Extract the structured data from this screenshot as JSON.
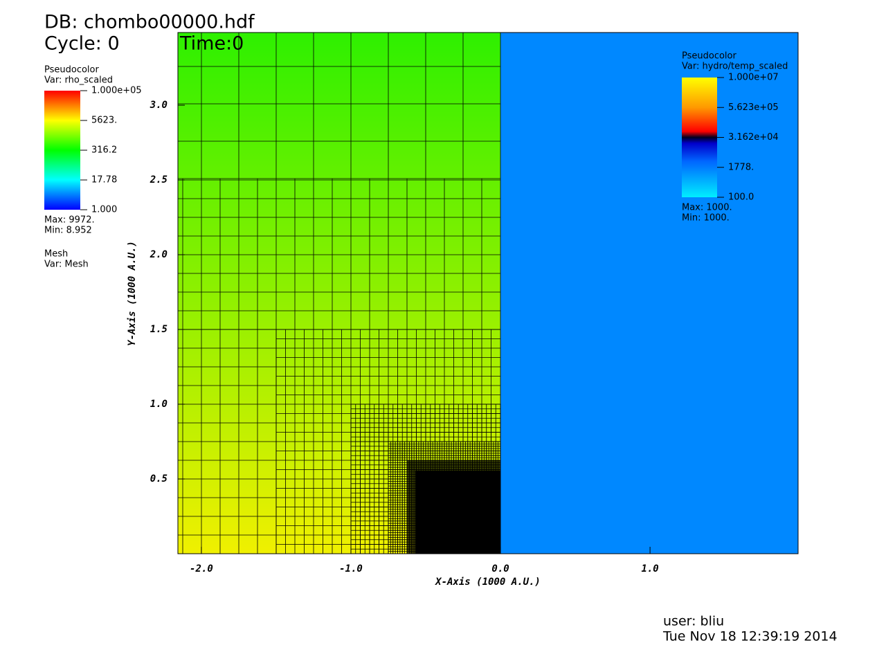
{
  "header": {
    "database": "DB: chombo00000.hdf",
    "cycle": "Cycle: 0",
    "time": "Time:0"
  },
  "chart_data": {
    "type": "pseudocolor",
    "x_label": "X-Axis (1000 A.U.)",
    "y_label": "Y-Axis (1000 A.U.)",
    "xlim": [
      -2.157,
      1.99
    ],
    "ylim": [
      0,
      3.486
    ],
    "xticks": [
      {
        "value": -2,
        "label": "-2.0"
      },
      {
        "value": -1,
        "label": "-1.0"
      },
      {
        "value": 0,
        "label": "0.0"
      },
      {
        "value": 1,
        "label": "1.0"
      }
    ],
    "yticks": [
      0.5,
      {
        "value": 1,
        "label": "1.0"
      },
      1.5,
      {
        "value": 2,
        "label": "2.0"
      },
      2.5,
      {
        "value": 3,
        "label": "3.0"
      }
    ],
    "legends": [
      {
        "title": "Pseudocolor",
        "var": "Var: rho_scaled",
        "log": true,
        "ticks": [
          {
            "value": 100000,
            "label": "1.000e+05"
          },
          {
            "value": 5623,
            "label": "5623."
          },
          {
            "value": 316.2,
            "label": "316.2"
          },
          {
            "value": 17.78,
            "label": "17.78"
          },
          {
            "value": 1,
            "label": "1.000"
          }
        ],
        "max": "Max:  9972.",
        "min": "Min:  8.952"
      },
      {
        "title": "Pseudocolor",
        "var": "Var: hydro/temp_scaled",
        "log": true,
        "ticks": [
          {
            "value": 10000000,
            "label": "1.000e+07"
          },
          {
            "value": 562300,
            "label": "5.623e+05"
          },
          {
            "value": 31620,
            "label": "3.162e+04"
          },
          {
            "value": 1778,
            "label": "1778."
          },
          {
            "value": 100,
            "label": "100.0"
          }
        ],
        "max": "Max:  1000.",
        "min": "Min:  1000."
      }
    ],
    "mesh_legend": {
      "title": "Mesh",
      "var": "Var: Mesh"
    }
  },
  "footer": {
    "user": "user: bliu",
    "date": "Tue Nov 18 12:39:19 2014"
  }
}
